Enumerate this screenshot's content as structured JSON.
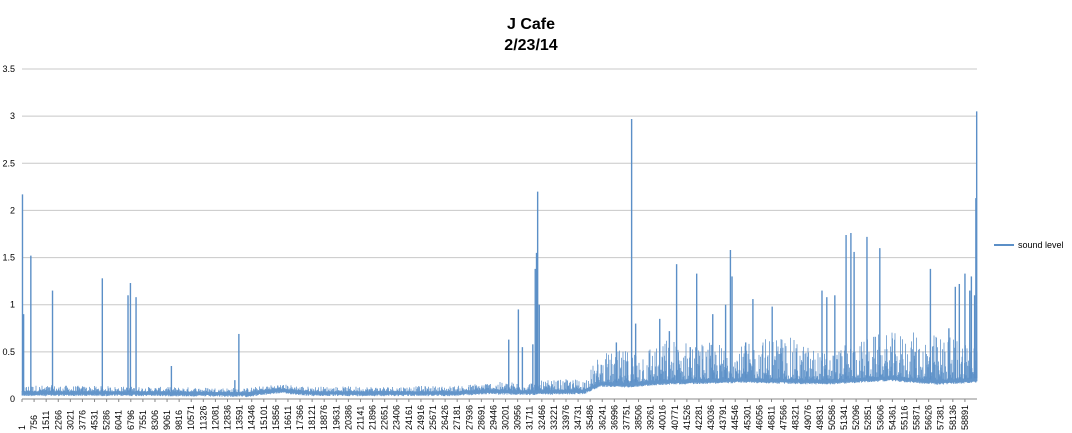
{
  "chart_data": {
    "type": "line",
    "title": "J Cafe",
    "subtitle": "2/23/14",
    "xlabel": "",
    "ylabel": "",
    "ylim": [
      0,
      3.5
    ],
    "yticks": [
      "0",
      "0.5",
      "1",
      "1.5",
      "2",
      "2.5",
      "3",
      "3.5"
    ],
    "grid": true,
    "legend_position": "right",
    "color": "#5b8fc7",
    "xtick_labels": [
      "1",
      "756",
      "1511",
      "2266",
      "3021",
      "3776",
      "4531",
      "5286",
      "6041",
      "6796",
      "7551",
      "8306",
      "9061",
      "9816",
      "10571",
      "11326",
      "12081",
      "12836",
      "13591",
      "14346",
      "15101",
      "15856",
      "16611",
      "17366",
      "18121",
      "18876",
      "19631",
      "20386",
      "21141",
      "21896",
      "22651",
      "23406",
      "24161",
      "24916",
      "25671",
      "26426",
      "27181",
      "27936",
      "28691",
      "29446",
      "30201",
      "30956",
      "31711",
      "32466",
      "33221",
      "33976",
      "34731",
      "35486",
      "36241",
      "36996",
      "37751",
      "38506",
      "39261",
      "40016",
      "40771",
      "41526",
      "42281",
      "43036",
      "43791",
      "44546",
      "45301",
      "46056",
      "46811",
      "47566",
      "48321",
      "49076",
      "49831",
      "50586",
      "51341",
      "52096",
      "52851",
      "53606",
      "54361",
      "55116",
      "55871",
      "56626",
      "57381",
      "58136",
      "58891"
    ],
    "series": [
      {
        "name": "sound level",
        "x_max": 59450,
        "baseline": [
          [
            0,
            0.08
          ],
          [
            8000,
            0.08
          ],
          [
            14000,
            0.07
          ],
          [
            16000,
            0.11
          ],
          [
            18000,
            0.08
          ],
          [
            27000,
            0.08
          ],
          [
            29000,
            0.1
          ],
          [
            31000,
            0.09
          ],
          [
            35000,
            0.1
          ],
          [
            36000,
            0.18
          ],
          [
            37500,
            0.17
          ],
          [
            40000,
            0.2
          ],
          [
            45000,
            0.22
          ],
          [
            50000,
            0.2
          ],
          [
            54000,
            0.24
          ],
          [
            57000,
            0.2
          ],
          [
            59450,
            0.22
          ]
        ],
        "noise_amplitude": [
          [
            0,
            0.07
          ],
          [
            8000,
            0.05
          ],
          [
            15000,
            0.05
          ],
          [
            27000,
            0.06
          ],
          [
            29000,
            0.08
          ],
          [
            35000,
            0.12
          ],
          [
            36000,
            0.3
          ],
          [
            40000,
            0.45
          ],
          [
            45000,
            0.35
          ],
          [
            47000,
            0.5
          ],
          [
            50000,
            0.3
          ],
          [
            53000,
            0.45
          ],
          [
            56000,
            0.5
          ],
          [
            59450,
            0.45
          ]
        ],
        "peaks": [
          [
            30,
            2.17
          ],
          [
            100,
            0.9
          ],
          [
            550,
            1.52
          ],
          [
            1900,
            1.15
          ],
          [
            5000,
            1.28
          ],
          [
            6600,
            1.1
          ],
          [
            6750,
            1.23
          ],
          [
            7100,
            1.08
          ],
          [
            9300,
            0.35
          ],
          [
            13250,
            0.2
          ],
          [
            13500,
            0.69
          ],
          [
            30300,
            0.63
          ],
          [
            30900,
            0.95
          ],
          [
            31150,
            0.55
          ],
          [
            31800,
            0.58
          ],
          [
            31950,
            1.38
          ],
          [
            32030,
            1.55
          ],
          [
            32100,
            2.2
          ],
          [
            32200,
            1.0
          ],
          [
            37000,
            0.6
          ],
          [
            37700,
            0.4
          ],
          [
            37950,
            2.97
          ],
          [
            38200,
            0.8
          ],
          [
            39700,
            0.85
          ],
          [
            40300,
            0.72
          ],
          [
            40750,
            1.43
          ],
          [
            41600,
            0.55
          ],
          [
            42000,
            1.33
          ],
          [
            43000,
            0.9
          ],
          [
            43800,
            1.0
          ],
          [
            44100,
            1.58
          ],
          [
            44200,
            1.3
          ],
          [
            45050,
            0.6
          ],
          [
            45500,
            1.06
          ],
          [
            46700,
            0.98
          ],
          [
            48200,
            0.5
          ],
          [
            49800,
            1.15
          ],
          [
            50100,
            1.08
          ],
          [
            50600,
            1.1
          ],
          [
            51300,
            1.74
          ],
          [
            51600,
            1.76
          ],
          [
            51800,
            1.56
          ],
          [
            52600,
            1.72
          ],
          [
            53400,
            1.6
          ],
          [
            55600,
            0.5
          ],
          [
            56550,
            1.38
          ],
          [
            57700,
            0.75
          ],
          [
            58100,
            1.19
          ],
          [
            58350,
            1.22
          ],
          [
            58700,
            1.33
          ],
          [
            59000,
            1.15
          ],
          [
            59100,
            1.3
          ],
          [
            59300,
            1.1
          ],
          [
            59380,
            2.13
          ],
          [
            59430,
            3.05
          ]
        ]
      }
    ]
  }
}
